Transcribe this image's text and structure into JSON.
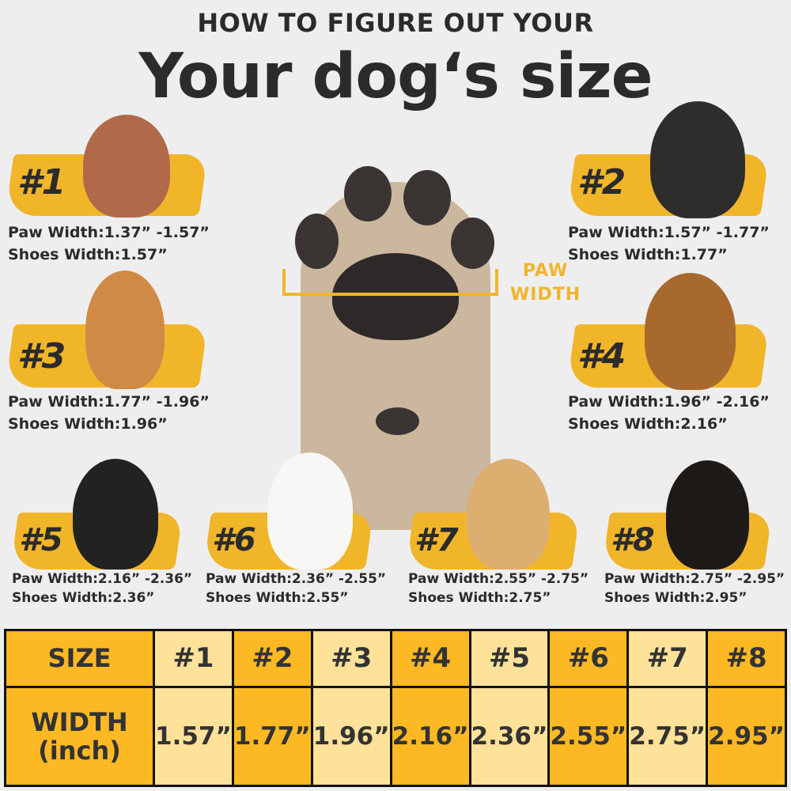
{
  "header": {
    "subtitle": "HOW TO FIGURE OUT YOUR",
    "title": "Your dog‘s size"
  },
  "paw": {
    "label_line1": "PAW",
    "label_line2": "WIDTH"
  },
  "colors": {
    "accent": "#fdb924",
    "light": "#ffe29a",
    "brush": "#f1b52a"
  },
  "dogs": [
    {
      "num": "#1",
      "paw": "Paw Width:1.37”  -1.57”",
      "shoes": "Shoes Width:1.57”"
    },
    {
      "num": "#2",
      "paw": "Paw Width:1.57”  -1.77”",
      "shoes": "Shoes Width:1.77”"
    },
    {
      "num": "#3",
      "paw": "Paw Width:1.77”  -1.96”",
      "shoes": "Shoes Width:1.96”"
    },
    {
      "num": "#4",
      "paw": "Paw Width:1.96”  -2.16”",
      "shoes": "Shoes Width:2.16”"
    },
    {
      "num": "#5",
      "paw": "Paw Width:2.16”  -2.36”",
      "shoes": "Shoes Width:2.36”"
    },
    {
      "num": "#6",
      "paw": "Paw Width:2.36”  -2.55”",
      "shoes": "Shoes Width:2.55”"
    },
    {
      "num": "#7",
      "paw": "Paw Width:2.55”  -2.75”",
      "shoes": "Shoes Width:2.75”"
    },
    {
      "num": "#8",
      "paw": "Paw Width:2.75”  -2.95”",
      "shoes": "Shoes Width:2.95”"
    }
  ],
  "table": {
    "size_header": "SIZE",
    "width_header_1": "WIDTH",
    "width_header_2": "(inch)",
    "sizes": [
      "#1",
      "#2",
      "#3",
      "#4",
      "#5",
      "#6",
      "#7",
      "#8"
    ],
    "widths": [
      "1.57”",
      "1.77”",
      "1.96”",
      "2.16”",
      "2.36”",
      "2.55”",
      "2.75”",
      "2.95”"
    ]
  }
}
